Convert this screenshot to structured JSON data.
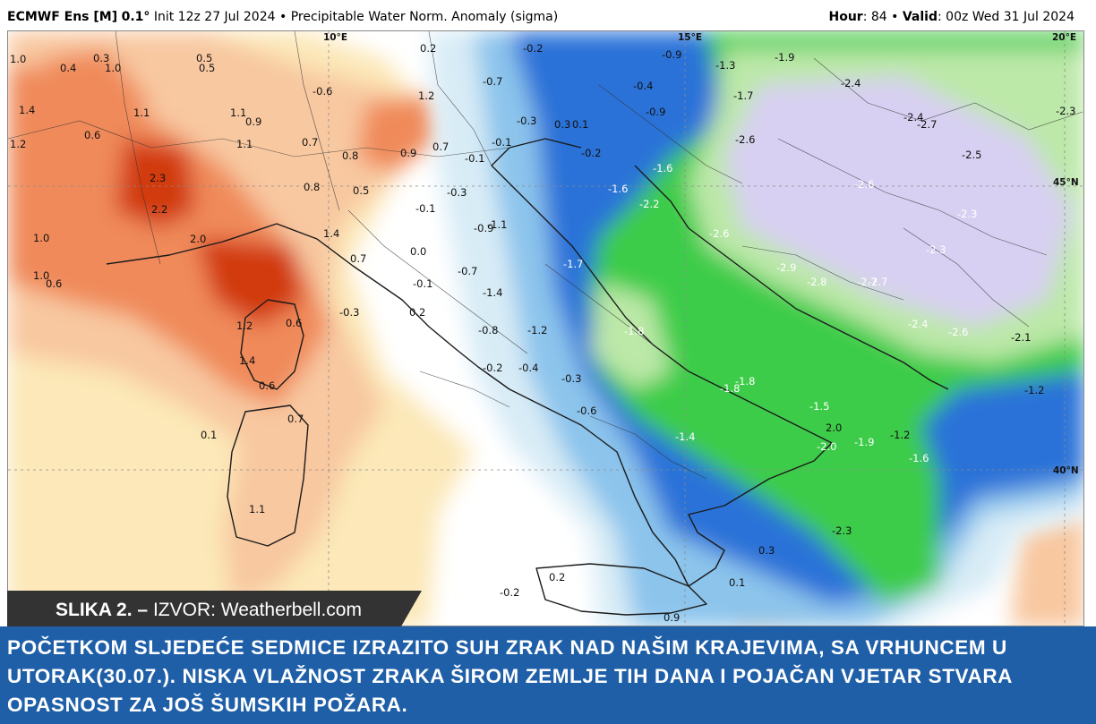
{
  "header": {
    "model_name": "ECMWF Ens [M]",
    "resolution": "0.1°",
    "init_text": "Init 12z 27 Jul 2024",
    "separator": "•",
    "product": "Precipitable Water Norm. Anomaly (sigma)",
    "hour_label": "Hour",
    "hour_value": ": 84",
    "valid_label": "Valid",
    "valid_value": ": 00z Wed 31 Jul 2024"
  },
  "map": {
    "grid_labels": [
      "10°E",
      "15°E",
      "20°E",
      "45°N",
      "40°N"
    ],
    "colors": {
      "strong_positive": "#d23a10",
      "positive": "#f08a5a",
      "weak_positive": "#f8c8a0",
      "slight_positive": "#fce8b8",
      "neutral": "#ffffff",
      "slight_negative": "#d8ecf6",
      "negative": "#8cc4ec",
      "strong_negative": "#2a72d8",
      "very_negative": "#3ccc48",
      "extreme_negative": "#bce8a8",
      "lavender": "#d8d0f2"
    },
    "values": [
      "1.0",
      "0.4",
      "0.3",
      "1.0",
      "0.5",
      "0.5",
      "0.2",
      "-0.2",
      "-0.9",
      "-1.3",
      "-1.9",
      "-2.4",
      "1.4",
      "-0.6",
      "1.2",
      "-0.7",
      "-0.4",
      "-1.7",
      "-2.4",
      "-2.7",
      "-2.3",
      "1.1",
      "1.1",
      "0.9",
      "0.6",
      "-0.3",
      "0.3",
      "0.1",
      "-0.9",
      "-2.6",
      "1.2",
      "1.1",
      "0.7",
      "0.8",
      "0.9",
      "0.7",
      "-0.1",
      "-0.1",
      "-0.2",
      "-2.5",
      "2.3",
      "0.8",
      "0.5",
      "-0.3",
      "-1.6",
      "-1.6",
      "-2.6",
      "-2.3",
      "2.2",
      "-0.1",
      "-0.9",
      "-1.1",
      "-2.2",
      "-2.6",
      "1.0",
      "2.0",
      "1.4",
      "0.0",
      "-2.3",
      "-2.7",
      "1.0",
      "0.7",
      "-0.7",
      "-1.7",
      "-2.9",
      "-2.8",
      "-2.7",
      "0.6",
      "-0.1",
      "-1.4",
      "0.6",
      "-0.3",
      "0.2",
      "1.2",
      "-0.8",
      "-1.2",
      "-1.8",
      "-2.4",
      "-2.6",
      "-2.1",
      "1.4",
      "-0.2",
      "-0.4",
      "-0.3",
      "0.6",
      "-1.8",
      "-1.8",
      "-1.2",
      "-0.6",
      "-1.5",
      "0.7",
      "2.0",
      "-1.2",
      "0.1",
      "-1.4",
      "-2.0",
      "-1.9",
      "-1.6",
      "1.1",
      "-2.3",
      "0.3",
      "0.2",
      "0.1",
      "-0.2",
      "0.9"
    ]
  },
  "source": {
    "label": "SLIKA 2. –",
    "text": "IZVOR: Weatherbell.com"
  },
  "caption": {
    "text": "POČETKOM SLJEDEĆE SEDMICE IZRAZITO SUH ZRAK NAD NAŠIM KRAJEVIMA, SA VRHUNCEM U UTORAK(30.07.). NISKA VLAŽNOST ZRAKA ŠIROM ZEMLJE TIH DANA I POJAČAN VJETAR STVARA OPASNOST ZA JOŠ ŠUMSKIH POŽARA."
  }
}
